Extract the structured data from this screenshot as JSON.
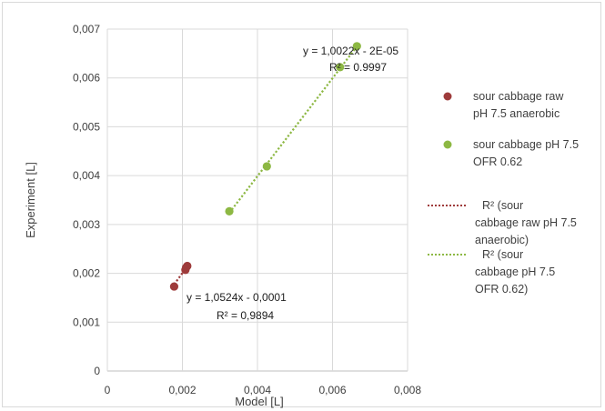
{
  "chart_data": {
    "type": "scatter",
    "title": "",
    "xlabel": "Model [L]",
    "ylabel": "Experiment [L]",
    "xlim": [
      0,
      0.008
    ],
    "ylim": [
      0,
      0.007
    ],
    "x_ticks": [
      {
        "value": 0,
        "label": "0"
      },
      {
        "value": 0.002,
        "label": "0,002"
      },
      {
        "value": 0.004,
        "label": "0,004"
      },
      {
        "value": 0.006,
        "label": "0,006"
      },
      {
        "value": 0.008,
        "label": "0,008"
      }
    ],
    "y_ticks": [
      {
        "value": 0,
        "label": "0"
      },
      {
        "value": 0.001,
        "label": "0,001"
      },
      {
        "value": 0.002,
        "label": "0,002"
      },
      {
        "value": 0.003,
        "label": "0,003"
      },
      {
        "value": 0.004,
        "label": "0,004"
      },
      {
        "value": 0.005,
        "label": "0,005"
      },
      {
        "value": 0.006,
        "label": "0,006"
      },
      {
        "value": 0.007,
        "label": "0,007"
      }
    ],
    "grid": true,
    "legend_position": "right",
    "series": [
      {
        "name_lines": [
          "sour cabbage raw",
          "pH 7.5    anaerobic"
        ],
        "color": "#9e3b3b",
        "points": [
          [
            0.00178,
            0.00173
          ],
          [
            0.00208,
            0.00207
          ],
          [
            0.00213,
            0.00215
          ],
          [
            0.0021,
            0.00212
          ]
        ],
        "trendline": {
          "x_range": [
            0.00178,
            0.00213
          ],
          "slope": 1.0524,
          "intercept": -0.0001,
          "equation_lines": [
            "y = 1,0524x - 0,0001",
            "R² = 0,9894"
          ],
          "legend_lines": [
            "R² (sour",
            "cabbage raw pH 7.5",
            "anaerobic)"
          ]
        }
      },
      {
        "name_lines": [
          "sour cabbage pH 7.5",
          "OFR 0.62"
        ],
        "color": "#8db843",
        "points": [
          [
            0.00325,
            0.00327
          ],
          [
            0.00425,
            0.00419
          ],
          [
            0.0062,
            0.00622
          ],
          [
            0.00665,
            0.00665
          ]
        ],
        "trendline": {
          "x_range": [
            0.00325,
            0.00665
          ],
          "slope": 1.0022,
          "intercept": -2e-05,
          "equation_lines": [
            "y = 1,0022x - 2E-05",
            "R² = 0.9997"
          ],
          "legend_lines": [
            "R² (sour",
            "cabbage pH 7.5",
            "OFR 0.62)"
          ]
        }
      }
    ]
  }
}
